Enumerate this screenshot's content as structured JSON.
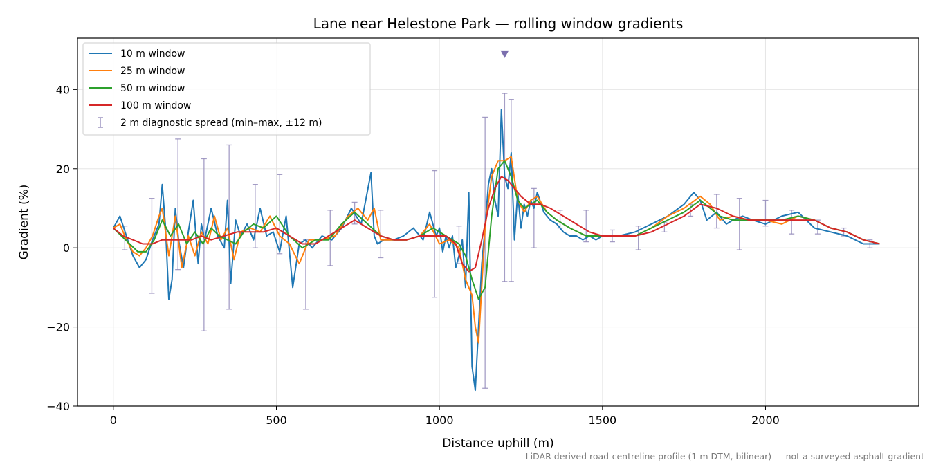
{
  "chart_data": {
    "type": "line",
    "title": "Lane near Helestone Park — rolling window gradients",
    "xlabel": "Distance uphill (m)",
    "ylabel": "Gradient (%)",
    "xlim": [
      -110,
      2470
    ],
    "ylim": [
      -40,
      53
    ],
    "xticks": [
      0,
      500,
      1000,
      1500,
      2000
    ],
    "yticks": [
      -40,
      -20,
      0,
      20,
      40
    ],
    "xtick_labels": [
      "0",
      "500",
      "1000",
      "1500",
      "2000"
    ],
    "ytick_labels": [
      "−40",
      "−20",
      "0",
      "20",
      "40"
    ],
    "grid": true,
    "legend_position": "top-left",
    "footnote": "LiDAR-derived road-centreline profile (1 m DTM, bilinear) — not a surveyed asphalt gradient",
    "series": [
      {
        "name": "10 m window",
        "color": "#1f77b4",
        "x": [
          0,
          20,
          40,
          60,
          80,
          100,
          120,
          140,
          150,
          160,
          170,
          180,
          190,
          200,
          215,
          230,
          245,
          260,
          270,
          280,
          300,
          320,
          340,
          350,
          360,
          375,
          390,
          410,
          430,
          450,
          470,
          490,
          510,
          530,
          550,
          570,
          590,
          610,
          640,
          670,
          700,
          730,
          760,
          790,
          800,
          810,
          830,
          860,
          890,
          920,
          950,
          970,
          990,
          1000,
          1010,
          1020,
          1030,
          1040,
          1050,
          1060,
          1070,
          1080,
          1090,
          1100,
          1110,
          1120,
          1130,
          1140,
          1150,
          1160,
          1170,
          1180,
          1190,
          1200,
          1210,
          1220,
          1230,
          1240,
          1250,
          1260,
          1270,
          1280,
          1290,
          1300,
          1320,
          1340,
          1360,
          1380,
          1400,
          1420,
          1440,
          1460,
          1480,
          1500,
          1550,
          1600,
          1650,
          1700,
          1750,
          1780,
          1800,
          1820,
          1850,
          1880,
          1900,
          1930,
          1960,
          2000,
          2050,
          2100,
          2150,
          2200,
          2250,
          2300,
          2350
        ],
        "y": [
          5,
          8,
          3,
          -2,
          -5,
          -3,
          2,
          6,
          16,
          5,
          -13,
          -8,
          10,
          2,
          -5,
          4,
          12,
          -4,
          6,
          2,
          10,
          3,
          0,
          12,
          -9,
          7,
          3,
          6,
          2,
          10,
          3,
          4,
          -1,
          8,
          -10,
          1,
          2,
          0,
          3,
          2,
          5,
          10,
          6,
          19,
          3,
          1,
          2,
          2,
          3,
          5,
          2,
          9,
          3,
          5,
          -1,
          3,
          0,
          3,
          -5,
          -2,
          2,
          -10,
          14,
          -30,
          -36,
          -20,
          -4,
          5,
          16,
          20,
          12,
          8,
          35,
          18,
          15,
          24,
          2,
          14,
          5,
          11,
          8,
          12,
          10,
          14,
          9,
          7,
          6,
          4,
          3,
          3,
          2,
          3,
          2,
          3,
          3,
          4,
          6,
          8,
          11,
          14,
          12,
          7,
          9,
          6,
          7,
          8,
          7,
          6,
          8,
          9,
          5,
          4,
          3,
          1,
          1
        ]
      },
      {
        "name": "25 m window",
        "color": "#ff7f0e",
        "x": [
          0,
          20,
          40,
          60,
          80,
          100,
          120,
          140,
          150,
          170,
          190,
          210,
          230,
          250,
          270,
          290,
          310,
          330,
          350,
          370,
          390,
          420,
          450,
          480,
          510,
          540,
          570,
          600,
          640,
          680,
          720,
          750,
          780,
          800,
          820,
          860,
          900,
          940,
          970,
          1000,
          1030,
          1060,
          1080,
          1100,
          1110,
          1120,
          1140,
          1160,
          1180,
          1200,
          1220,
          1240,
          1260,
          1280,
          1300,
          1330,
          1360,
          1400,
          1450,
          1500,
          1550,
          1600,
          1650,
          1700,
          1750,
          1800,
          1830,
          1860,
          1900,
          1950,
          2000,
          2050,
          2100,
          2150,
          2200,
          2250,
          2300,
          2350
        ],
        "y": [
          5,
          6,
          2,
          -1,
          -2,
          0,
          3,
          8,
          10,
          -2,
          8,
          -5,
          3,
          -2,
          4,
          1,
          8,
          2,
          5,
          -3,
          4,
          5,
          4,
          8,
          3,
          1,
          -4,
          2,
          2,
          3,
          8,
          10,
          7,
          10,
          2,
          2,
          2,
          3,
          6,
          1,
          2,
          0,
          -8,
          -12,
          -20,
          -24,
          5,
          18,
          22,
          22,
          23,
          12,
          9,
          12,
          13,
          9,
          7,
          5,
          3,
          3,
          3,
          3,
          5,
          8,
          10,
          13,
          11,
          7,
          8,
          7,
          7,
          6,
          8,
          7,
          5,
          4,
          2,
          1
        ]
      },
      {
        "name": "50 m window",
        "color": "#2ca02c",
        "x": [
          0,
          25,
          50,
          75,
          100,
          125,
          150,
          175,
          200,
          225,
          250,
          275,
          300,
          325,
          350,
          375,
          400,
          430,
          460,
          500,
          540,
          580,
          620,
          660,
          700,
          740,
          780,
          820,
          860,
          900,
          940,
          980,
          1020,
          1060,
          1080,
          1100,
          1120,
          1140,
          1160,
          1180,
          1200,
          1220,
          1240,
          1260,
          1280,
          1300,
          1330,
          1360,
          1400,
          1450,
          1500,
          1550,
          1600,
          1650,
          1700,
          1750,
          1800,
          1830,
          1860,
          1900,
          1950,
          2000,
          2050,
          2100,
          2150,
          2200,
          2250,
          2300,
          2350
        ],
        "y": [
          5,
          3,
          1,
          -1,
          -1,
          2,
          7,
          3,
          6,
          1,
          4,
          1,
          5,
          3,
          2,
          1,
          4,
          6,
          5,
          8,
          3,
          0,
          2,
          2,
          6,
          9,
          6,
          3,
          2,
          2,
          3,
          5,
          3,
          1,
          -2,
          -8,
          -13,
          -10,
          8,
          20,
          22,
          18,
          12,
          10,
          11,
          12,
          9,
          7,
          5,
          3,
          3,
          3,
          3,
          5,
          7,
          9,
          12,
          10,
          8,
          7,
          7,
          7,
          7,
          8,
          7,
          5,
          4,
          2,
          1
        ]
      },
      {
        "name": "100 m window",
        "color": "#d62728",
        "x": [
          0,
          30,
          60,
          90,
          120,
          150,
          180,
          210,
          240,
          270,
          300,
          340,
          380,
          420,
          460,
          500,
          540,
          580,
          620,
          660,
          700,
          740,
          780,
          820,
          860,
          900,
          940,
          980,
          1020,
          1050,
          1070,
          1090,
          1110,
          1130,
          1150,
          1170,
          1190,
          1210,
          1230,
          1250,
          1280,
          1310,
          1340,
          1380,
          1420,
          1460,
          1500,
          1550,
          1600,
          1650,
          1700,
          1750,
          1800,
          1850,
          1900,
          1950,
          2000,
          2050,
          2100,
          2150,
          2200,
          2250,
          2300,
          2350
        ],
        "y": [
          5,
          3,
          2,
          1,
          1,
          2,
          2,
          2,
          2,
          3,
          2,
          3,
          4,
          4,
          4,
          5,
          3,
          1,
          1,
          3,
          5,
          7,
          5,
          3,
          2,
          2,
          3,
          3,
          3,
          1,
          -4,
          -6,
          -5,
          2,
          10,
          15,
          18,
          17,
          15,
          13,
          11,
          11,
          10,
          8,
          6,
          4,
          3,
          3,
          3,
          4,
          6,
          8,
          11,
          10,
          8,
          7,
          7,
          7,
          7,
          7,
          5,
          4,
          2,
          1
        ]
      }
    ],
    "diagnostic": {
      "name": "2 m diagnostic spread (min–max, ±12 m)",
      "color": "#8f86b8",
      "x": [
        35,
        118,
        198,
        278,
        355,
        435,
        510,
        590,
        665,
        740,
        820,
        985,
        1060,
        1140,
        1200,
        1220,
        1290,
        1370,
        1450,
        1530,
        1610,
        1690,
        1770,
        1850,
        1920,
        2000,
        2080,
        2160,
        2240,
        2320
      ],
      "ymin": [
        -0.5,
        -11.5,
        -5.5,
        -21,
        -15.5,
        0,
        -1.5,
        -15.5,
        -4.5,
        6,
        -2.5,
        -12.5,
        -4,
        -35.5,
        -8.5,
        -8.5,
        0,
        5,
        1.5,
        1.5,
        -0.5,
        4,
        8,
        5,
        -0.5,
        5.5,
        3.5,
        3.5,
        3,
        0
      ],
      "ymax": [
        5.5,
        12.5,
        27.5,
        22.5,
        26,
        16,
        18.5,
        2,
        9.5,
        11.5,
        9.5,
        19.5,
        5.5,
        33,
        39,
        37.5,
        15,
        9.5,
        9.5,
        4.5,
        5.5,
        6.5,
        11,
        13.5,
        12.5,
        12,
        9.5,
        7,
        5,
        2
      ]
    },
    "marker": {
      "x": 1200,
      "y": 49,
      "shape": "down-triangle",
      "color": "#7b6fae"
    }
  }
}
